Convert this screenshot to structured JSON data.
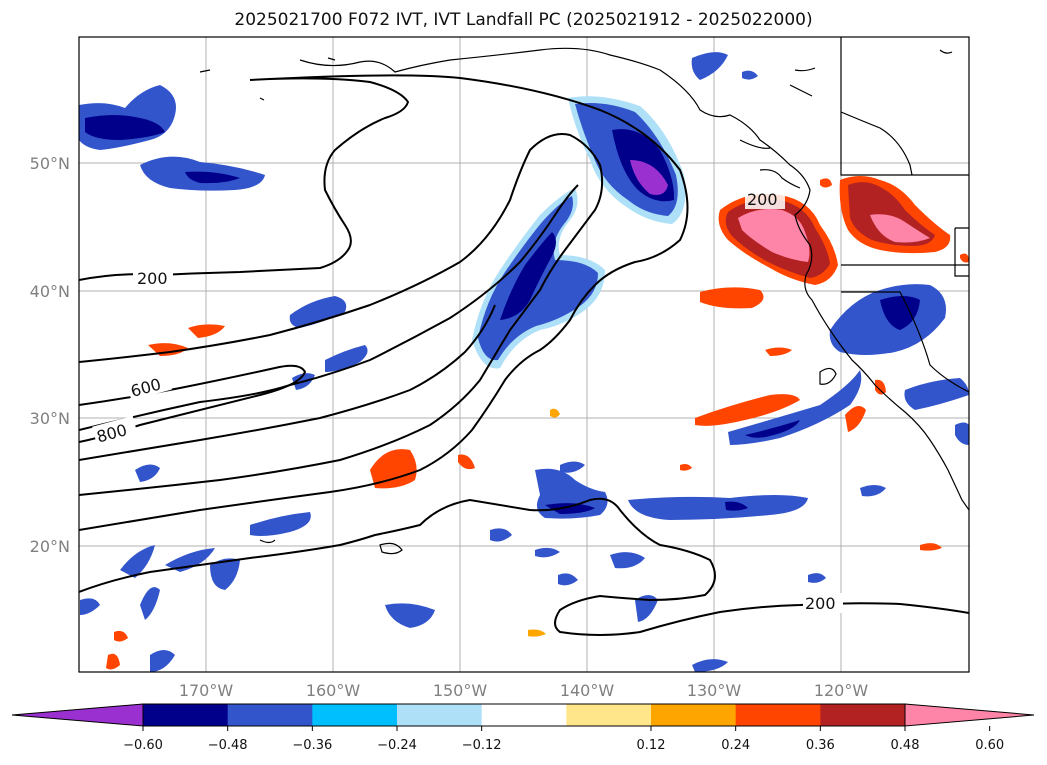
{
  "title": "2025021700 F072 IVT, IVT Landfall PC (2025021912 - 2025022000)",
  "map": {
    "lat_labels": [
      "50°N",
      "40°N",
      "30°N",
      "20°N"
    ],
    "lon_labels": [
      "170°W",
      "160°W",
      "150°W",
      "140°W",
      "130°W",
      "120°W"
    ],
    "ivt_contour_labels": [
      "200",
      "600",
      "800",
      "200",
      "200"
    ]
  },
  "colorbar": {
    "ticks": [
      "−0.60",
      "−0.48",
      "−0.36",
      "−0.24",
      "−0.12",
      "0.12",
      "0.24",
      "0.36",
      "0.48",
      "0.60"
    ],
    "colors": [
      "#9b30d0",
      "#00008b",
      "#3355cc",
      "#00bfff",
      "#aee0f8",
      "#ffffff",
      "#ffe68a",
      "#ffa500",
      "#ff4500",
      "#b22222",
      "#ff85a8"
    ]
  },
  "palette": {
    "negative_strong": "#9b30d0",
    "negative_dark": "#00008b",
    "negative_mid": "#3355cc",
    "positive_orange": "#ff4500",
    "positive_pink": "#ff85a8",
    "contour": "#000000"
  }
}
